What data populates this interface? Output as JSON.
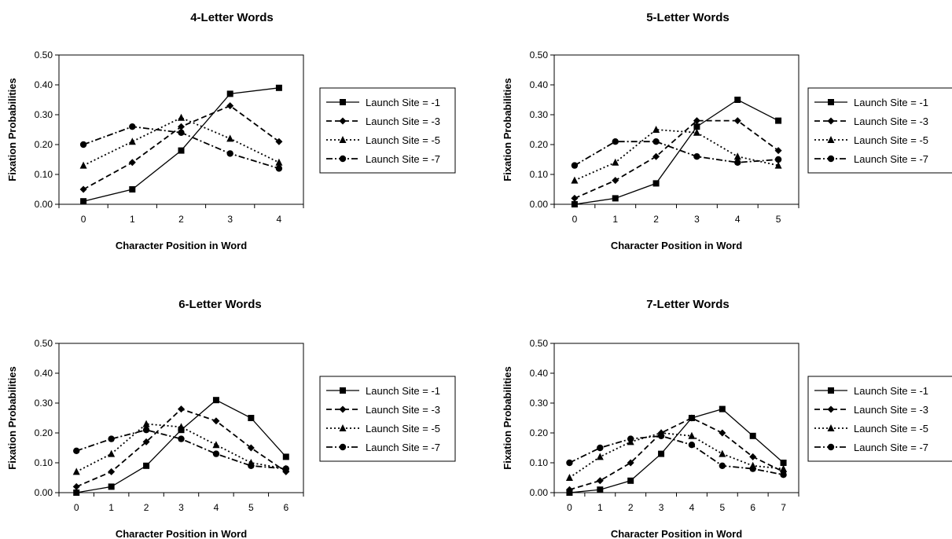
{
  "chart_data": [
    {
      "type": "line",
      "title": "4-Letter Words",
      "xlabel": "Character Position in Word",
      "ylabel": "Fixation Probabilities",
      "x": [
        0,
        1,
        2,
        3,
        4
      ],
      "ylim": [
        0,
        0.5
      ],
      "yticks": [
        "0.00",
        "0.10",
        "0.20",
        "0.30",
        "0.40",
        "0.50"
      ],
      "grid": false,
      "legend": "right",
      "series": [
        {
          "name": "Launch Site = -1",
          "values": [
            0.01,
            0.05,
            0.18,
            0.37,
            0.39
          ],
          "marker": "square",
          "dash": "solid"
        },
        {
          "name": "Launch Site = -3",
          "values": [
            0.05,
            0.14,
            0.26,
            0.33,
            0.21
          ],
          "marker": "diamond",
          "dash": "dash"
        },
        {
          "name": "Launch Site = -5",
          "values": [
            0.13,
            0.21,
            0.29,
            0.22,
            0.14
          ],
          "marker": "triangle",
          "dash": "dot"
        },
        {
          "name": "Launch Site = -7",
          "values": [
            0.2,
            0.26,
            0.24,
            0.17,
            0.12
          ],
          "marker": "circle",
          "dash": "dashdot"
        }
      ]
    },
    {
      "type": "line",
      "title": "5-Letter Words",
      "xlabel": "Character Position in Word",
      "ylabel": "Fixation Probabilities",
      "x": [
        0,
        1,
        2,
        3,
        4,
        5
      ],
      "ylim": [
        0,
        0.5
      ],
      "yticks": [
        "0.00",
        "0.10",
        "0.20",
        "0.30",
        "0.40",
        "0.50"
      ],
      "grid": false,
      "legend": "right",
      "series": [
        {
          "name": "Launch Site = -1",
          "values": [
            0.0,
            0.02,
            0.07,
            0.26,
            0.35,
            0.28
          ],
          "marker": "square",
          "dash": "solid"
        },
        {
          "name": "Launch Site = -3",
          "values": [
            0.02,
            0.08,
            0.16,
            0.28,
            0.28,
            0.18
          ],
          "marker": "diamond",
          "dash": "dash"
        },
        {
          "name": "Launch Site = -5",
          "values": [
            0.08,
            0.14,
            0.25,
            0.24,
            0.16,
            0.13
          ],
          "marker": "triangle",
          "dash": "dot"
        },
        {
          "name": "Launch Site = -7",
          "values": [
            0.13,
            0.21,
            0.21,
            0.16,
            0.14,
            0.15
          ],
          "marker": "circle",
          "dash": "dashdot"
        }
      ]
    },
    {
      "type": "line",
      "title": "6-Letter Words",
      "xlabel": "Character Position in Word",
      "ylabel": "Fixation Probabilities",
      "x": [
        0,
        1,
        2,
        3,
        4,
        5,
        6
      ],
      "ylim": [
        0,
        0.5
      ],
      "yticks": [
        "0.00",
        "0.10",
        "0.20",
        "0.30",
        "0.40",
        "0.50"
      ],
      "grid": false,
      "legend": "right",
      "series": [
        {
          "name": "Launch Site = -1",
          "values": [
            0.0,
            0.02,
            0.09,
            0.21,
            0.31,
            0.25,
            0.12
          ],
          "marker": "square",
          "dash": "solid"
        },
        {
          "name": "Launch Site = -3",
          "values": [
            0.02,
            0.07,
            0.17,
            0.28,
            0.24,
            0.15,
            0.07
          ],
          "marker": "diamond",
          "dash": "dash"
        },
        {
          "name": "Launch Site = -5",
          "values": [
            0.07,
            0.13,
            0.23,
            0.22,
            0.16,
            0.1,
            0.08
          ],
          "marker": "triangle",
          "dash": "dot"
        },
        {
          "name": "Launch Site = -7",
          "values": [
            0.14,
            0.18,
            0.21,
            0.18,
            0.13,
            0.09,
            0.08
          ],
          "marker": "circle",
          "dash": "dashdot"
        }
      ]
    },
    {
      "type": "line",
      "title": "7-Letter Words",
      "xlabel": "Character Position in Word",
      "ylabel": "Fixation Probabilities",
      "x": [
        0,
        1,
        2,
        3,
        4,
        5,
        6,
        7
      ],
      "ylim": [
        0,
        0.5
      ],
      "yticks": [
        "0.00",
        "0.10",
        "0.20",
        "0.30",
        "0.40",
        "0.50"
      ],
      "grid": false,
      "legend": "right",
      "series": [
        {
          "name": "Launch Site = -1",
          "values": [
            0.0,
            0.01,
            0.04,
            0.13,
            0.25,
            0.28,
            0.19,
            0.1
          ],
          "marker": "square",
          "dash": "solid"
        },
        {
          "name": "Launch Site = -3",
          "values": [
            0.01,
            0.04,
            0.1,
            0.2,
            0.25,
            0.2,
            0.12,
            0.07
          ],
          "marker": "diamond",
          "dash": "dash"
        },
        {
          "name": "Launch Site = -5",
          "values": [
            0.05,
            0.12,
            0.17,
            0.2,
            0.19,
            0.13,
            0.09,
            0.08
          ],
          "marker": "triangle",
          "dash": "dot"
        },
        {
          "name": "Launch Site = -7",
          "values": [
            0.1,
            0.15,
            0.18,
            0.19,
            0.16,
            0.09,
            0.08,
            0.06
          ],
          "marker": "circle",
          "dash": "dashdot"
        }
      ]
    }
  ]
}
